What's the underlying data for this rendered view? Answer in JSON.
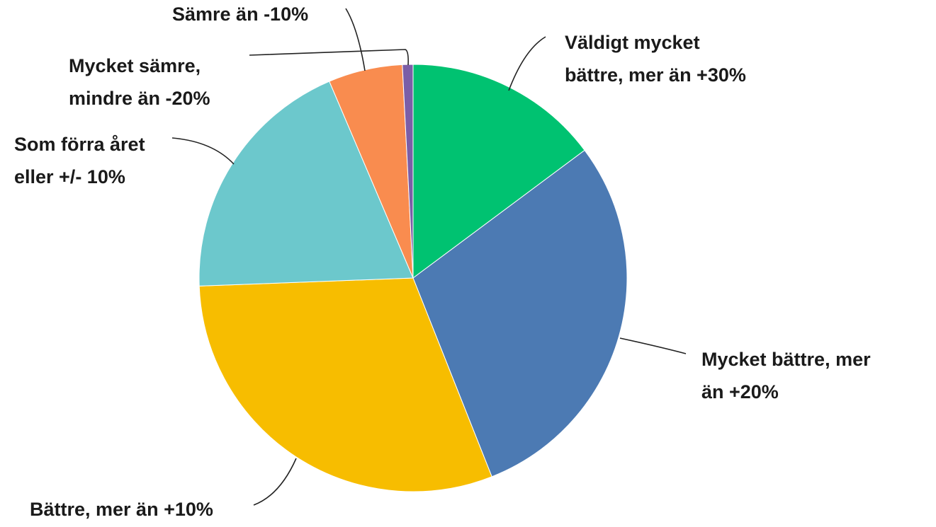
{
  "chart_data": {
    "type": "pie",
    "labels": [
      [
        "Väldigt mycket",
        "bättre, mer än +30%"
      ],
      [
        "Mycket bättre, mer",
        "än +20%"
      ],
      [
        "Bättre, mer än +10%"
      ],
      [
        "Som förra året",
        "eller +/- 10%"
      ],
      [
        "Sämre än -10%"
      ],
      [
        "Mycket sämre,",
        "mindre än -20%"
      ]
    ],
    "values": [
      14.8,
      29.2,
      30.4,
      19.2,
      5.6,
      0.8
    ],
    "colors": [
      "#00c271",
      "#4c7ab3",
      "#f7bd00",
      "#6cc8cc",
      "#f98c4f",
      "#7b5ea7"
    ]
  }
}
